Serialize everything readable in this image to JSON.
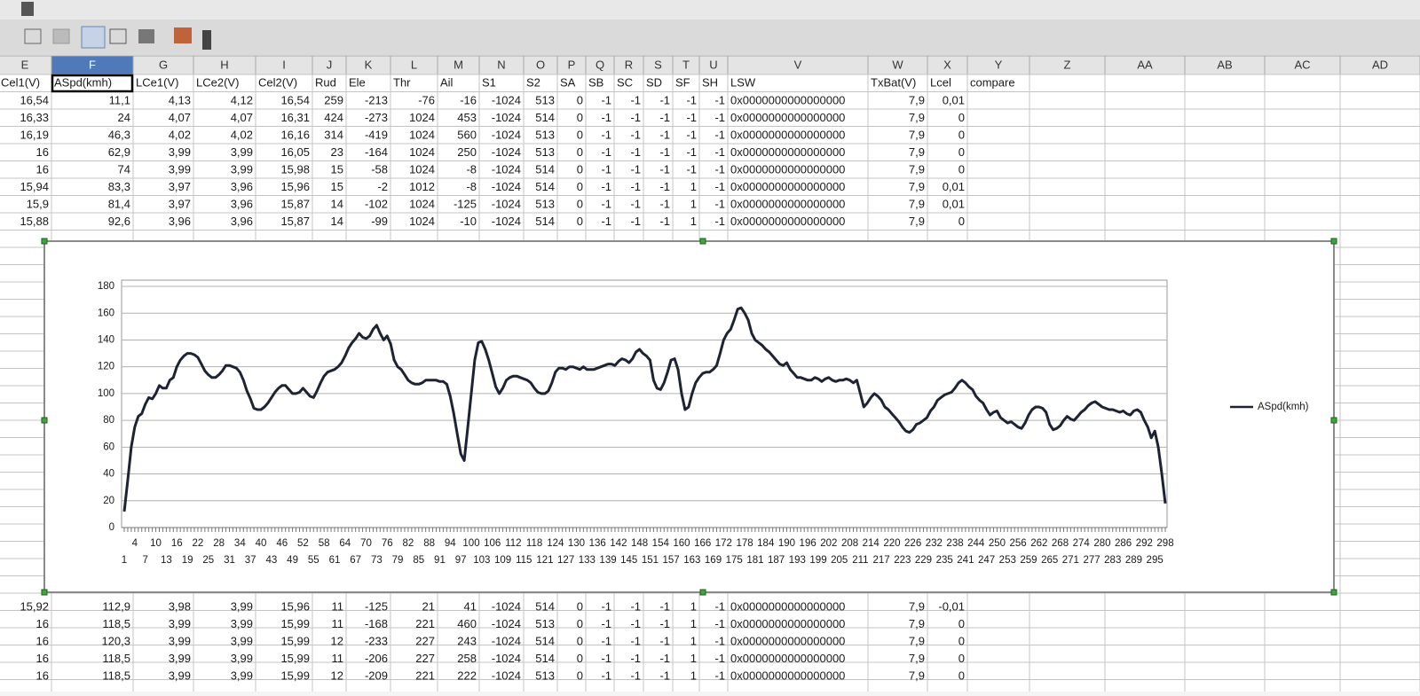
{
  "sheet": {
    "columns": [
      "E",
      "F",
      "G",
      "H",
      "I",
      "J",
      "K",
      "L",
      "M",
      "N",
      "O",
      "P",
      "Q",
      "R",
      "S",
      "T",
      "U",
      "V",
      "W",
      "X",
      "Y",
      "Z",
      "AA",
      "AB",
      "AC",
      "AD"
    ],
    "header": [
      "Cel1(V)",
      "ASpd(kmh)",
      "LCe1(V)",
      "LCe2(V)",
      "Cel2(V)",
      "Rud",
      "Ele",
      "Thr",
      "Ail",
      "S1",
      "S2",
      "SA",
      "SB",
      "SC",
      "SD",
      "SF",
      "SH",
      "LSW",
      "TxBat(V)",
      "Lcel",
      "compare"
    ],
    "rows_top": [
      [
        "16,54",
        "11,1",
        "4,13",
        "4,12",
        "16,54",
        "259",
        "-213",
        "-76",
        "-16",
        "-1024",
        "513",
        "0",
        "-1",
        "-1",
        "-1",
        "-1",
        "-1",
        "0x0000000000000000",
        "7,9",
        "0,01"
      ],
      [
        "16,33",
        "24",
        "4,07",
        "4,07",
        "16,31",
        "424",
        "-273",
        "1024",
        "453",
        "-1024",
        "514",
        "0",
        "-1",
        "-1",
        "-1",
        "-1",
        "-1",
        "0x0000000000000000",
        "7,9",
        "0"
      ],
      [
        "16,19",
        "46,3",
        "4,02",
        "4,02",
        "16,16",
        "314",
        "-419",
        "1024",
        "560",
        "-1024",
        "513",
        "0",
        "-1",
        "-1",
        "-1",
        "-1",
        "-1",
        "0x0000000000000000",
        "7,9",
        "0"
      ],
      [
        "16",
        "62,9",
        "3,99",
        "3,99",
        "16,05",
        "23",
        "-164",
        "1024",
        "250",
        "-1024",
        "513",
        "0",
        "-1",
        "-1",
        "-1",
        "-1",
        "-1",
        "0x0000000000000000",
        "7,9",
        "0"
      ],
      [
        "16",
        "74",
        "3,99",
        "3,99",
        "15,98",
        "15",
        "-58",
        "1024",
        "-8",
        "-1024",
        "514",
        "0",
        "-1",
        "-1",
        "-1",
        "-1",
        "-1",
        "0x0000000000000000",
        "7,9",
        "0"
      ],
      [
        "15,94",
        "83,3",
        "3,97",
        "3,96",
        "15,96",
        "15",
        "-2",
        "1012",
        "-8",
        "-1024",
        "514",
        "0",
        "-1",
        "-1",
        "-1",
        "1",
        "-1",
        "0x0000000000000000",
        "7,9",
        "0,01"
      ],
      [
        "15,9",
        "81,4",
        "3,97",
        "3,96",
        "15,87",
        "14",
        "-102",
        "1024",
        "-125",
        "-1024",
        "513",
        "0",
        "-1",
        "-1",
        "-1",
        "1",
        "-1",
        "0x0000000000000000",
        "7,9",
        "0,01"
      ],
      [
        "15,88",
        "92,6",
        "3,96",
        "3,96",
        "15,87",
        "14",
        "-99",
        "1024",
        "-10",
        "-1024",
        "514",
        "0",
        "-1",
        "-1",
        "-1",
        "1",
        "-1",
        "0x0000000000000000",
        "7,9",
        "0"
      ]
    ],
    "rows_bottom": [
      [
        "15,92",
        "112,9",
        "3,98",
        "3,99",
        "15,96",
        "11",
        "-125",
        "21",
        "41",
        "-1024",
        "514",
        "0",
        "-1",
        "-1",
        "-1",
        "1",
        "-1",
        "0x0000000000000000",
        "7,9",
        "-0,01"
      ],
      [
        "16",
        "118,5",
        "3,99",
        "3,99",
        "15,99",
        "11",
        "-168",
        "221",
        "460",
        "-1024",
        "513",
        "0",
        "-1",
        "-1",
        "-1",
        "1",
        "-1",
        "0x0000000000000000",
        "7,9",
        "0"
      ],
      [
        "16",
        "120,3",
        "3,99",
        "3,99",
        "15,99",
        "12",
        "-233",
        "227",
        "243",
        "-1024",
        "514",
        "0",
        "-1",
        "-1",
        "-1",
        "1",
        "-1",
        "0x0000000000000000",
        "7,9",
        "0"
      ],
      [
        "16",
        "118,5",
        "3,99",
        "3,99",
        "15,99",
        "11",
        "-206",
        "227",
        "258",
        "-1024",
        "514",
        "0",
        "-1",
        "-1",
        "-1",
        "1",
        "-1",
        "0x0000000000000000",
        "7,9",
        "0"
      ],
      [
        "16",
        "118,5",
        "3,99",
        "3,99",
        "15,99",
        "12",
        "-209",
        "221",
        "222",
        "-1024",
        "513",
        "0",
        "-1",
        "-1",
        "-1",
        "1",
        "-1",
        "0x0000000000000000",
        "7,9",
        "0"
      ]
    ]
  },
  "chart_data": {
    "type": "line",
    "categories": [
      1,
      null,
      null,
      4,
      null,
      null,
      7,
      null,
      null,
      10,
      null,
      null,
      13,
      null,
      null,
      16,
      null,
      null,
      19,
      null,
      null,
      22,
      null,
      null,
      25,
      null,
      null,
      28,
      null,
      null,
      31,
      null,
      null,
      34,
      null,
      null,
      37,
      null,
      null,
      40,
      null,
      null,
      43,
      null,
      null,
      46,
      null,
      null,
      49,
      null,
      null,
      52,
      null,
      null,
      55,
      null,
      null,
      58,
      null,
      null,
      61,
      null,
      null,
      64,
      null,
      null,
      67,
      null,
      null,
      70,
      null,
      null,
      73,
      null,
      null,
      76,
      null,
      null,
      79,
      null,
      null,
      82,
      null,
      null,
      85,
      null,
      null,
      88,
      null,
      null,
      91,
      null,
      null,
      94,
      null,
      null,
      97,
      null,
      null,
      100,
      null,
      null,
      103,
      null,
      null,
      106,
      null,
      null,
      109,
      null,
      null,
      112,
      null,
      null,
      115,
      null,
      null,
      118,
      null,
      null,
      121,
      null,
      null,
      124,
      null,
      null,
      127,
      null,
      null,
      130,
      null,
      null,
      133,
      null,
      null,
      136,
      null,
      null,
      139,
      null,
      null,
      142,
      null,
      null,
      145,
      null,
      null,
      148,
      null,
      null,
      151,
      null,
      null,
      154,
      null,
      null,
      157,
      null,
      null,
      160,
      null,
      null,
      163,
      null,
      null,
      166,
      null,
      null,
      169,
      null,
      null,
      172,
      null,
      null,
      175,
      null,
      null,
      178,
      null,
      null,
      181,
      null,
      null,
      184,
      null,
      null,
      187,
      null,
      null,
      190,
      null,
      null,
      193,
      null,
      null,
      196,
      null,
      null,
      199,
      null,
      null,
      202,
      null,
      null,
      205,
      null,
      null,
      208,
      null,
      null,
      211,
      null,
      null,
      214,
      null,
      null,
      217,
      null,
      null,
      220,
      null,
      null,
      223,
      null,
      null,
      226,
      null,
      null,
      229,
      null,
      null,
      232,
      null,
      null,
      235,
      null,
      null,
      238,
      null,
      null,
      241,
      null,
      null,
      244,
      null,
      null,
      247,
      null,
      null,
      250,
      null,
      null,
      253,
      null,
      null,
      256,
      null,
      null,
      259,
      null,
      null,
      262,
      null,
      null,
      265,
      null,
      null,
      268,
      null,
      null,
      271,
      null,
      null,
      274,
      null,
      null,
      277,
      null,
      null,
      280,
      null,
      null,
      283,
      null,
      null,
      286,
      null,
      null,
      289,
      null,
      null,
      292,
      null,
      null,
      295,
      null,
      null,
      298
    ],
    "series": [
      {
        "name": "ASpd(kmh)",
        "color": "#1d2333",
        "values": [
          12,
          35,
          60,
          75,
          83,
          85,
          92,
          97,
          96,
          100,
          106,
          104,
          104,
          110,
          112,
          120,
          125,
          128,
          130,
          130,
          129,
          127,
          122,
          117,
          114,
          112,
          112,
          114,
          117,
          121,
          121,
          120,
          119,
          116,
          110,
          102,
          96,
          89,
          88,
          88,
          90,
          93,
          97,
          101,
          104,
          106,
          106,
          103,
          100,
          100,
          101,
          104,
          101,
          98,
          97,
          102,
          108,
          113,
          116,
          117,
          118,
          120,
          123,
          128,
          134,
          138,
          141,
          145,
          142,
          141,
          143,
          148,
          151,
          145,
          140,
          143,
          137,
          125,
          120,
          118,
          114,
          110,
          108,
          107,
          107,
          108,
          110,
          110,
          110,
          110,
          109,
          109,
          107,
          98,
          85,
          70,
          55,
          50,
          75,
          100,
          125,
          138,
          139,
          133,
          125,
          115,
          105,
          100,
          104,
          110,
          112,
          113,
          113,
          112,
          111,
          110,
          108,
          104,
          101,
          100,
          100,
          102,
          108,
          116,
          119,
          119,
          118,
          120,
          120,
          119,
          118,
          120,
          118,
          118,
          118,
          119,
          120,
          121,
          122,
          122,
          121,
          124,
          126,
          125,
          123,
          126,
          131,
          133,
          130,
          128,
          125,
          110,
          104,
          103,
          108,
          116,
          125,
          126,
          118,
          100,
          88,
          90,
          100,
          108,
          112,
          115,
          116,
          116,
          118,
          121,
          130,
          140,
          145,
          148,
          155,
          163,
          164,
          160,
          155,
          145,
          140,
          138,
          136,
          133,
          131,
          128,
          125,
          122,
          121,
          123,
          118,
          115,
          112,
          112,
          111,
          110,
          110,
          112,
          111,
          109,
          111,
          112,
          110,
          109,
          110,
          110,
          111,
          110,
          108,
          110,
          100,
          90,
          93,
          97,
          100,
          98,
          95,
          90,
          88,
          85,
          82,
          79,
          75,
          72,
          71,
          73,
          77,
          78,
          80,
          82,
          87,
          90,
          95,
          97,
          99,
          100,
          101,
          104,
          108,
          110,
          108,
          105,
          103,
          98,
          95,
          93,
          88,
          84,
          86,
          87,
          82,
          80,
          78,
          79,
          77,
          75,
          74,
          78,
          84,
          88,
          90,
          90,
          89,
          86,
          77,
          73,
          74,
          76,
          80,
          83,
          81,
          80,
          83,
          86,
          88,
          91,
          93,
          94,
          92,
          90,
          89,
          88,
          88,
          87,
          86,
          87,
          85,
          84,
          87,
          88,
          86,
          80,
          75,
          67,
          72,
          60,
          40,
          18
        ]
      }
    ],
    "ylim": [
      0,
      180
    ],
    "yticks": [
      0,
      20,
      40,
      60,
      80,
      100,
      120,
      140,
      160,
      180
    ],
    "grid": true,
    "legend": "right"
  }
}
